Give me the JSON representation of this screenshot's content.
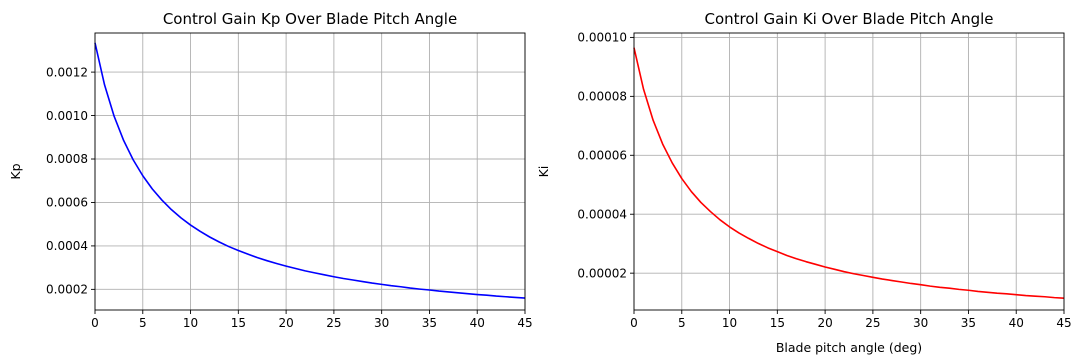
{
  "chart_data": [
    {
      "type": "line",
      "title": "Control Gain Kp Over Blade Pitch Angle",
      "xlabel": "",
      "ylabel": "Kp",
      "xlim": [
        0,
        45
      ],
      "ylim": [
        0.000105,
        0.00138
      ],
      "grid": true,
      "xticks": [
        0,
        5,
        10,
        15,
        20,
        25,
        30,
        35,
        40,
        45
      ],
      "xtick_labels": [
        "0",
        "5",
        "10",
        "15",
        "20",
        "25",
        "30",
        "35",
        "40",
        "45"
      ],
      "yticks": [
        0.0002,
        0.0004,
        0.0006,
        0.0008,
        0.001,
        0.0012
      ],
      "ytick_labels": [
        "0.0002",
        "0.0004",
        "0.0006",
        "0.0008",
        "0.0010",
        "0.0012"
      ],
      "series": [
        {
          "color": "#0000ff",
          "x": [
            0,
            1,
            2,
            3,
            4,
            5,
            6,
            7,
            8,
            9,
            10,
            11,
            12,
            13,
            14,
            15,
            16,
            17,
            18,
            19,
            20,
            21,
            22,
            23,
            24,
            25,
            26,
            27,
            28,
            29,
            30,
            31,
            32,
            33,
            34,
            35,
            36,
            37,
            38,
            39,
            40,
            41,
            42,
            43,
            44,
            45
          ],
          "values": [
            0.001335,
            0.001141,
            0.000997,
            0.000885,
            0.000796,
            0.000723,
            0.000662,
            0.000611,
            0.000567,
            0.000529,
            0.000496,
            0.000467,
            0.000441,
            0.000418,
            0.000397,
            0.000379,
            0.000362,
            0.000346,
            0.000332,
            0.000319,
            0.000307,
            0.000296,
            0.000285,
            0.000276,
            0.000267,
            0.000258,
            0.00025,
            0.000243,
            0.000236,
            0.000229,
            0.000223,
            0.000217,
            0.000212,
            0.000206,
            0.000201,
            0.000197,
            0.000192,
            0.000188,
            0.000184,
            0.00018,
            0.000176,
            0.000173,
            0.000169,
            0.000166,
            0.000163,
            0.00016
          ]
        }
      ]
    },
    {
      "type": "line",
      "title": "Control Gain Ki Over Blade Pitch Angle",
      "xlabel": "Blade pitch angle (deg)",
      "ylabel": "Ki",
      "xlim": [
        0,
        45
      ],
      "ylim": [
        7.5e-06,
        0.0001015
      ],
      "grid": true,
      "xticks": [
        0,
        5,
        10,
        15,
        20,
        25,
        30,
        35,
        40,
        45
      ],
      "xtick_labels": [
        "0",
        "5",
        "10",
        "15",
        "20",
        "25",
        "30",
        "35",
        "40",
        "45"
      ],
      "yticks": [
        2e-05,
        4e-05,
        6e-05,
        8e-05,
        0.0001
      ],
      "ytick_labels": [
        "0.00002",
        "0.00004",
        "0.00006",
        "0.00008",
        "0.00010"
      ],
      "series": [
        {
          "color": "#ff0000",
          "x": [
            0,
            1,
            2,
            3,
            4,
            5,
            6,
            7,
            8,
            9,
            10,
            11,
            12,
            13,
            14,
            15,
            16,
            17,
            18,
            19,
            20,
            21,
            22,
            23,
            24,
            25,
            26,
            27,
            28,
            29,
            30,
            31,
            32,
            33,
            34,
            35,
            36,
            37,
            38,
            39,
            40,
            41,
            42,
            43,
            44,
            45
          ],
          "values": [
            9.65e-05,
            8.24e-05,
            7.19e-05,
            6.38e-05,
            5.74e-05,
            5.21e-05,
            4.77e-05,
            4.4e-05,
            4.09e-05,
            3.81e-05,
            3.57e-05,
            3.36e-05,
            3.18e-05,
            3.01e-05,
            2.86e-05,
            2.73e-05,
            2.6e-05,
            2.49e-05,
            2.39e-05,
            2.3e-05,
            2.21e-05,
            2.13e-05,
            2.05e-05,
            1.98e-05,
            1.92e-05,
            1.86e-05,
            1.8e-05,
            1.75e-05,
            1.7e-05,
            1.65e-05,
            1.61e-05,
            1.56e-05,
            1.52e-05,
            1.49e-05,
            1.45e-05,
            1.42e-05,
            1.38e-05,
            1.35e-05,
            1.32e-05,
            1.3e-05,
            1.27e-05,
            1.24e-05,
            1.22e-05,
            1.2e-05,
            1.17e-05,
            1.15e-05
          ]
        }
      ]
    }
  ]
}
